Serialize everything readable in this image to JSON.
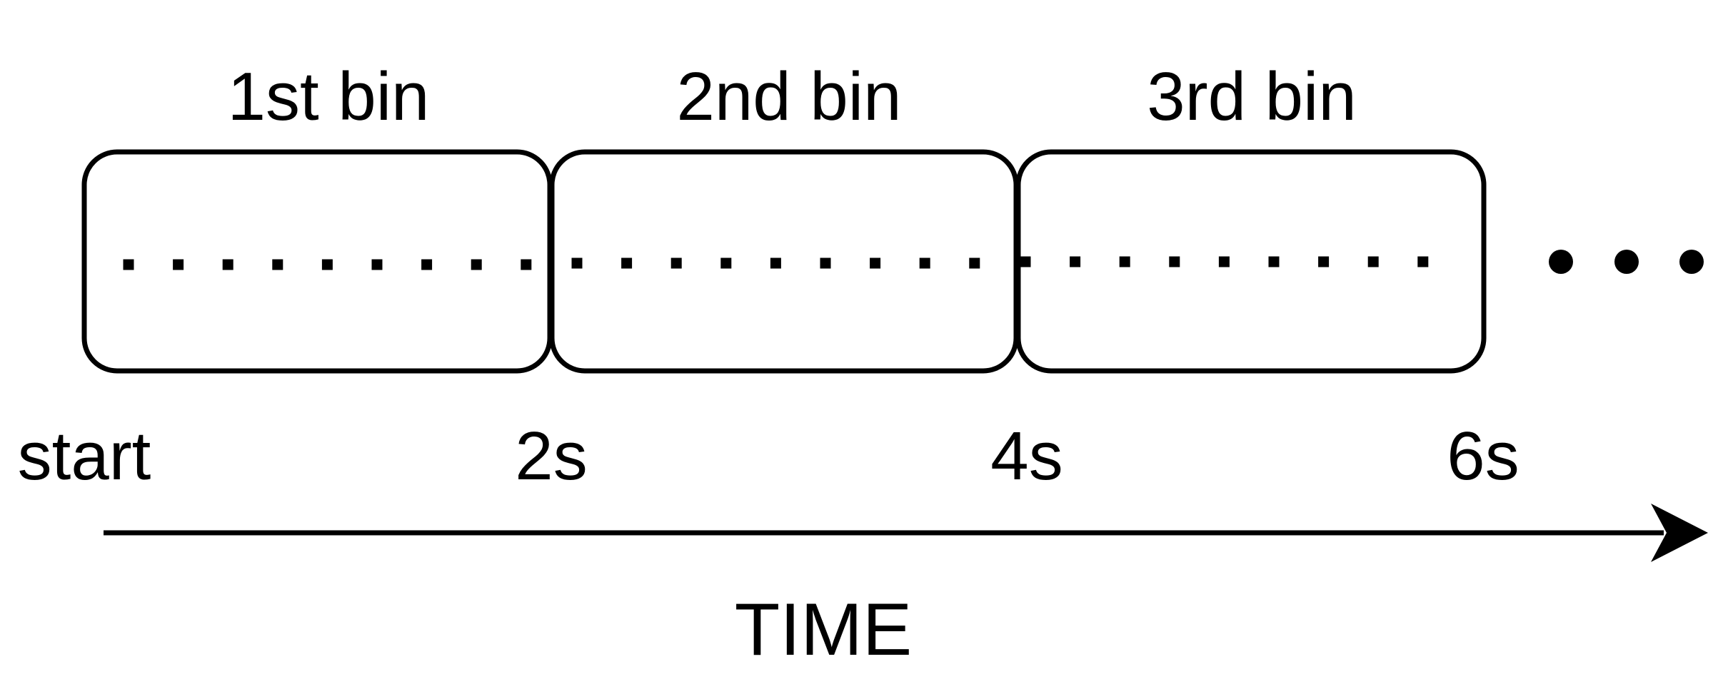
{
  "bins": [
    {
      "title": "1st bin",
      "samples": 9
    },
    {
      "title": "2nd bin",
      "samples": 9
    },
    {
      "title": "3rd bin",
      "samples": 9
    }
  ],
  "ticks": [
    "start",
    "2s",
    "4s",
    "6s"
  ],
  "axis_title": "TIME",
  "continuation": "…",
  "colors": {
    "stroke": "#000000",
    "background": "#ffffff"
  }
}
